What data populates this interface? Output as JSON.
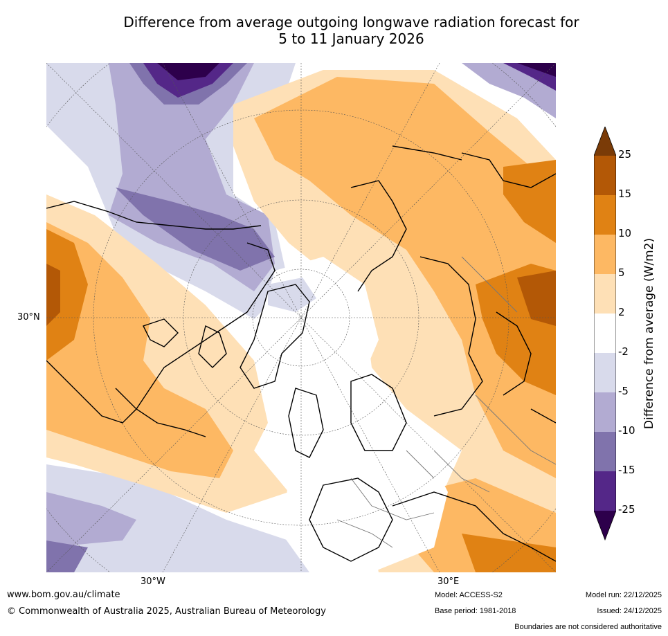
{
  "title": {
    "line1": "Difference from average outgoing longwave radiation forecast for",
    "line2": "5 to 11 January 2026"
  },
  "map": {
    "projection": "north-polar-stereographic",
    "lat_label": "30°N",
    "lon_label_west": "30°W",
    "lon_label_east": "30°E"
  },
  "colorbar": {
    "title": "Difference from average (W/m2)",
    "ticks": [
      "25",
      "15",
      "10",
      "5",
      "2",
      "-2",
      "-5",
      "-10",
      "-15",
      "-25"
    ],
    "bins": [
      {
        "range": ">25",
        "color": "#7a3b07"
      },
      {
        "range": "15 to 25",
        "color": "#b35806"
      },
      {
        "range": "10 to 15",
        "color": "#e08214"
      },
      {
        "range": "5 to 10",
        "color": "#fdb863"
      },
      {
        "range": "2 to 5",
        "color": "#fee0b6"
      },
      {
        "range": "-2 to 2",
        "color": "#ffffff"
      },
      {
        "range": "-5 to -2",
        "color": "#d8daeb"
      },
      {
        "range": "-10 to -5",
        "color": "#b2abd2"
      },
      {
        "range": "-15 to -10",
        "color": "#8073ac"
      },
      {
        "range": "-25 to -15",
        "color": "#542788"
      },
      {
        "range": "<-25",
        "color": "#2d004b"
      }
    ]
  },
  "footer": {
    "website": "www.bom.gov.au/climate",
    "copyright": "© Commonwealth of Australia 2025, Australian Bureau of Meteorology",
    "model": "Model: ACCESS-S2",
    "base_period": "Base period: 1981-2018",
    "model_run": "Model run: 22/12/2025",
    "issued": "Issued: 24/12/2025",
    "disclaimer": "Boundaries are not considered authoritative"
  }
}
